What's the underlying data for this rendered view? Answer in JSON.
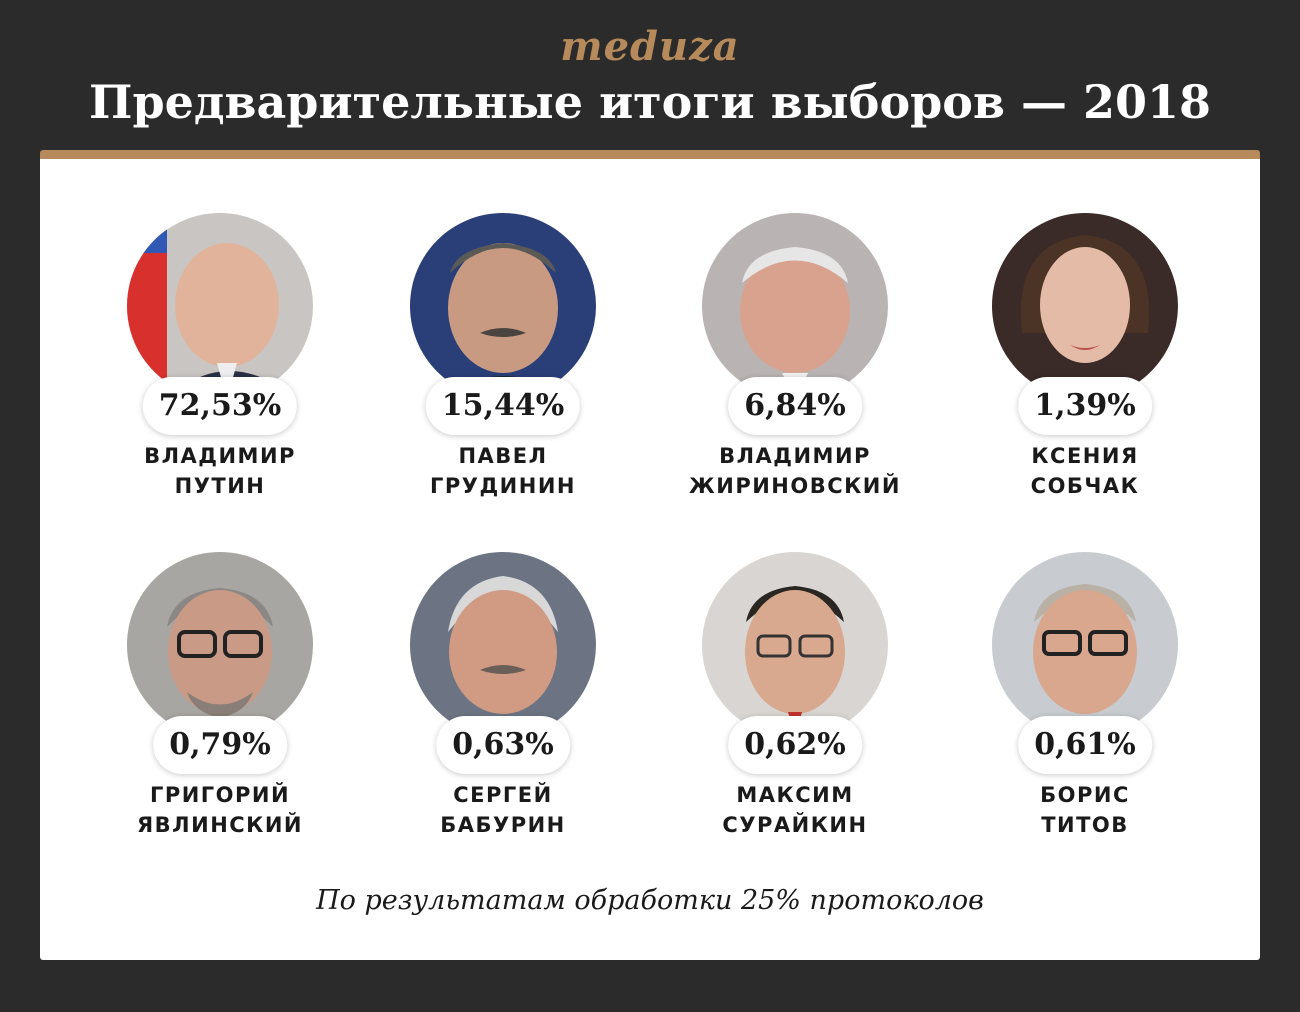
{
  "header": {
    "logo": "meduza",
    "title": "Предварительные итоги выборов — 2018"
  },
  "candidates": [
    {
      "first_name": "ВЛАДИМИР",
      "last_name": "ПУТИН",
      "percent": "72,53%"
    },
    {
      "first_name": "ПАВЕЛ",
      "last_name": "ГРУДИНИН",
      "percent": "15,44%"
    },
    {
      "first_name": "ВЛАДИМИР",
      "last_name": "ЖИРИНОВСКИЙ",
      "percent": "6,84%"
    },
    {
      "first_name": "КСЕНИЯ",
      "last_name": "СОБЧАК",
      "percent": "1,39%"
    },
    {
      "first_name": "ГРИГОРИЙ",
      "last_name": "ЯВЛИНСКИЙ",
      "percent": "0,79%"
    },
    {
      "first_name": "СЕРГЕЙ",
      "last_name": "БАБУРИН",
      "percent": "0,63%"
    },
    {
      "first_name": "МАКСИМ",
      "last_name": "СУРАЙКИН",
      "percent": "0,62%"
    },
    {
      "first_name": "БОРИС",
      "last_name": "ТИТОВ",
      "percent": "0,61%"
    }
  ],
  "footnote": "По результатам обработки 25% протоколов",
  "colors": {
    "background": "#2b2b2b",
    "accent": "#b68a5a",
    "card": "#ffffff"
  }
}
